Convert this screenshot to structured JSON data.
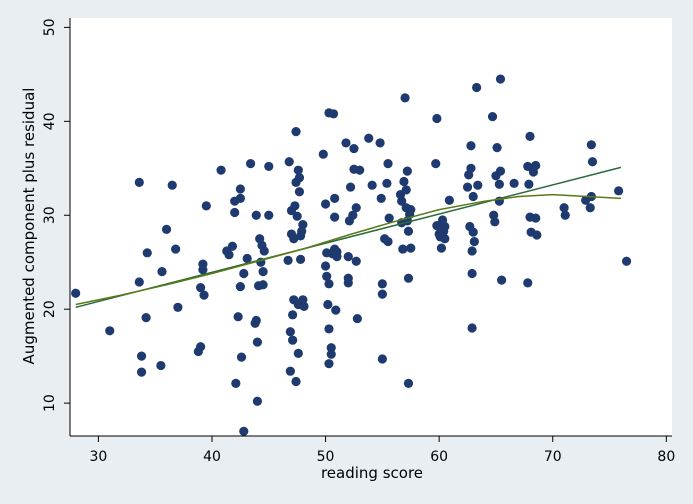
{
  "chart_data": {
    "type": "scatter",
    "title": "",
    "xlabel": "reading score",
    "ylabel": "Augmented component plus residual",
    "xlim": [
      27.5,
      80.5
    ],
    "ylim": [
      6.5,
      51
    ],
    "xticks": [
      30,
      40,
      50,
      60,
      70,
      80
    ],
    "yticks": [
      10,
      20,
      30,
      40,
      50
    ],
    "grid": false,
    "legend": "none",
    "colors": {
      "background": "#e8eef2",
      "plot_area": "#ffffff",
      "points": "#1e3a6e",
      "linear_fit": "#2b6a3a",
      "lowess": "#5a7a1a"
    },
    "series": [
      {
        "kind": "points",
        "points": [
          [
            28,
            21.7
          ],
          [
            31,
            17.7
          ],
          [
            33.6,
            33.5
          ],
          [
            33.6,
            22.9
          ],
          [
            33.8,
            13.3
          ],
          [
            33.8,
            15.0
          ],
          [
            34.2,
            19.1
          ],
          [
            34.3,
            26.0
          ],
          [
            35.5,
            14.0
          ],
          [
            35.6,
            24.0
          ],
          [
            36.0,
            28.5
          ],
          [
            36.5,
            33.2
          ],
          [
            36.8,
            26.4
          ],
          [
            37.0,
            20.2
          ],
          [
            38.8,
            15.5
          ],
          [
            39.0,
            16.0
          ],
          [
            39.0,
            22.3
          ],
          [
            39.2,
            24.2
          ],
          [
            39.2,
            24.8
          ],
          [
            39.3,
            21.5
          ],
          [
            39.5,
            31.0
          ],
          [
            40.8,
            34.8
          ],
          [
            41.3,
            26.2
          ],
          [
            41.5,
            25.8
          ],
          [
            41.8,
            26.7
          ],
          [
            42.0,
            30.3
          ],
          [
            42.0,
            31.5
          ],
          [
            42.1,
            12.1
          ],
          [
            42.3,
            19.2
          ],
          [
            42.5,
            32.8
          ],
          [
            42.5,
            31.8
          ],
          [
            42.5,
            22.4
          ],
          [
            42.6,
            14.9
          ],
          [
            42.8,
            23.8
          ],
          [
            42.8,
            7.0
          ],
          [
            43.1,
            25.4
          ],
          [
            43.4,
            35.5
          ],
          [
            43.8,
            18.5
          ],
          [
            43.9,
            18.8
          ],
          [
            43.9,
            30.0
          ],
          [
            44.0,
            16.5
          ],
          [
            44.0,
            10.2
          ],
          [
            44.1,
            22.5
          ],
          [
            44.2,
            27.5
          ],
          [
            44.3,
            25.0
          ],
          [
            44.4,
            26.8
          ],
          [
            44.5,
            24.0
          ],
          [
            44.5,
            22.6
          ],
          [
            44.6,
            26.2
          ],
          [
            45.0,
            30.0
          ],
          [
            45.0,
            35.2
          ],
          [
            46.7,
            25.2
          ],
          [
            46.8,
            35.7
          ],
          [
            46.9,
            17.6
          ],
          [
            46.9,
            13.4
          ],
          [
            47.0,
            28.0
          ],
          [
            47.0,
            30.5
          ],
          [
            47.1,
            16.7
          ],
          [
            47.1,
            19.4
          ],
          [
            47.2,
            21.0
          ],
          [
            47.2,
            27.5
          ],
          [
            47.3,
            31.0
          ],
          [
            47.4,
            33.5
          ],
          [
            47.4,
            38.9
          ],
          [
            47.4,
            12.3
          ],
          [
            47.5,
            29.9
          ],
          [
            47.6,
            34.8
          ],
          [
            47.6,
            20.5
          ],
          [
            47.6,
            15.3
          ],
          [
            47.7,
            34.0
          ],
          [
            47.7,
            32.5
          ],
          [
            47.8,
            27.8
          ],
          [
            47.8,
            25.3
          ],
          [
            47.9,
            28.3
          ],
          [
            48.0,
            29.0
          ],
          [
            48.0,
            21.0
          ],
          [
            48.1,
            20.3
          ],
          [
            49.8,
            36.5
          ],
          [
            50.0,
            31.2
          ],
          [
            50.0,
            24.6
          ],
          [
            50.1,
            26.0
          ],
          [
            50.1,
            23.5
          ],
          [
            50.2,
            20.5
          ],
          [
            50.3,
            17.9
          ],
          [
            50.3,
            22.7
          ],
          [
            50.3,
            14.2
          ],
          [
            50.3,
            40.9
          ],
          [
            50.5,
            15.9
          ],
          [
            50.5,
            15.2
          ],
          [
            50.6,
            25.9
          ],
          [
            50.7,
            40.8
          ],
          [
            50.8,
            29.8
          ],
          [
            50.8,
            31.8
          ],
          [
            50.8,
            26.4
          ],
          [
            50.9,
            19.9
          ],
          [
            51.0,
            25.6
          ],
          [
            51.0,
            26.1
          ],
          [
            51.8,
            37.7
          ],
          [
            52.0,
            22.8
          ],
          [
            52.0,
            23.3
          ],
          [
            52.0,
            25.6
          ],
          [
            52.1,
            29.4
          ],
          [
            52.2,
            33.0
          ],
          [
            52.4,
            30.0
          ],
          [
            52.5,
            34.9
          ],
          [
            52.5,
            37.1
          ],
          [
            52.7,
            25.1
          ],
          [
            52.7,
            30.8
          ],
          [
            52.8,
            19.0
          ],
          [
            53.0,
            34.8
          ],
          [
            53.8,
            38.2
          ],
          [
            54.1,
            33.2
          ],
          [
            54.8,
            37.7
          ],
          [
            54.9,
            31.8
          ],
          [
            55.0,
            22.7
          ],
          [
            55.0,
            21.6
          ],
          [
            55.0,
            14.7
          ],
          [
            55.2,
            27.5
          ],
          [
            55.4,
            33.4
          ],
          [
            55.5,
            35.5
          ],
          [
            55.5,
            27.2
          ],
          [
            55.6,
            29.7
          ],
          [
            56.6,
            32.2
          ],
          [
            56.7,
            31.5
          ],
          [
            56.7,
            29.2
          ],
          [
            56.8,
            26.4
          ],
          [
            56.9,
            33.6
          ],
          [
            57.0,
            42.5
          ],
          [
            57.1,
            32.7
          ],
          [
            57.1,
            30.8
          ],
          [
            57.2,
            34.7
          ],
          [
            57.2,
            29.4
          ],
          [
            57.3,
            28.3
          ],
          [
            57.3,
            23.3
          ],
          [
            57.3,
            12.1
          ],
          [
            57.4,
            30.1
          ],
          [
            57.5,
            26.5
          ],
          [
            57.5,
            30.6
          ],
          [
            59.7,
            35.5
          ],
          [
            59.8,
            40.3
          ],
          [
            59.8,
            28.9
          ],
          [
            60.0,
            28.0
          ],
          [
            60.1,
            27.7
          ],
          [
            60.2,
            26.5
          ],
          [
            60.3,
            29.5
          ],
          [
            60.4,
            28.3
          ],
          [
            60.5,
            27.5
          ],
          [
            60.5,
            28.8
          ],
          [
            60.9,
            31.6
          ],
          [
            62.5,
            33.0
          ],
          [
            62.6,
            34.3
          ],
          [
            62.7,
            28.8
          ],
          [
            62.8,
            35.0
          ],
          [
            62.8,
            37.4
          ],
          [
            62.9,
            26.2
          ],
          [
            62.9,
            23.8
          ],
          [
            62.9,
            18.0
          ],
          [
            63.0,
            32.0
          ],
          [
            63.0,
            28.2
          ],
          [
            63.1,
            27.2
          ],
          [
            63.3,
            43.6
          ],
          [
            63.4,
            33.2
          ],
          [
            64.7,
            40.5
          ],
          [
            64.8,
            30.0
          ],
          [
            64.9,
            29.3
          ],
          [
            65.0,
            34.2
          ],
          [
            65.1,
            37.2
          ],
          [
            65.3,
            33.3
          ],
          [
            65.3,
            31.5
          ],
          [
            65.4,
            44.5
          ],
          [
            65.4,
            34.7
          ],
          [
            65.5,
            23.1
          ],
          [
            66.6,
            33.4
          ],
          [
            67.8,
            22.8
          ],
          [
            67.8,
            35.2
          ],
          [
            67.9,
            33.3
          ],
          [
            68.0,
            38.4
          ],
          [
            68.0,
            29.8
          ],
          [
            68.1,
            28.2
          ],
          [
            68.2,
            35.0
          ],
          [
            68.3,
            34.6
          ],
          [
            68.5,
            29.7
          ],
          [
            68.5,
            35.3
          ],
          [
            68.6,
            27.9
          ],
          [
            71.0,
            30.8
          ],
          [
            71.1,
            30.0
          ],
          [
            72.9,
            31.6
          ],
          [
            73.3,
            30.8
          ],
          [
            73.4,
            32.0
          ],
          [
            73.4,
            37.5
          ],
          [
            73.5,
            35.7
          ],
          [
            75.8,
            32.6
          ],
          [
            76.5,
            25.1
          ]
        ]
      },
      {
        "kind": "line",
        "role": "linear_fit",
        "points": [
          [
            28,
            20.2
          ],
          [
            76,
            35.1
          ]
        ]
      },
      {
        "kind": "line",
        "role": "lowess",
        "points": [
          [
            28,
            20.5
          ],
          [
            32,
            21.5
          ],
          [
            36,
            22.6
          ],
          [
            40,
            23.8
          ],
          [
            44,
            25.1
          ],
          [
            48,
            26.4
          ],
          [
            52,
            27.9
          ],
          [
            56,
            29.3
          ],
          [
            60,
            30.6
          ],
          [
            64,
            31.5
          ],
          [
            67,
            32.0
          ],
          [
            70,
            32.2
          ],
          [
            73,
            32.0
          ],
          [
            76,
            31.8
          ]
        ]
      }
    ]
  }
}
